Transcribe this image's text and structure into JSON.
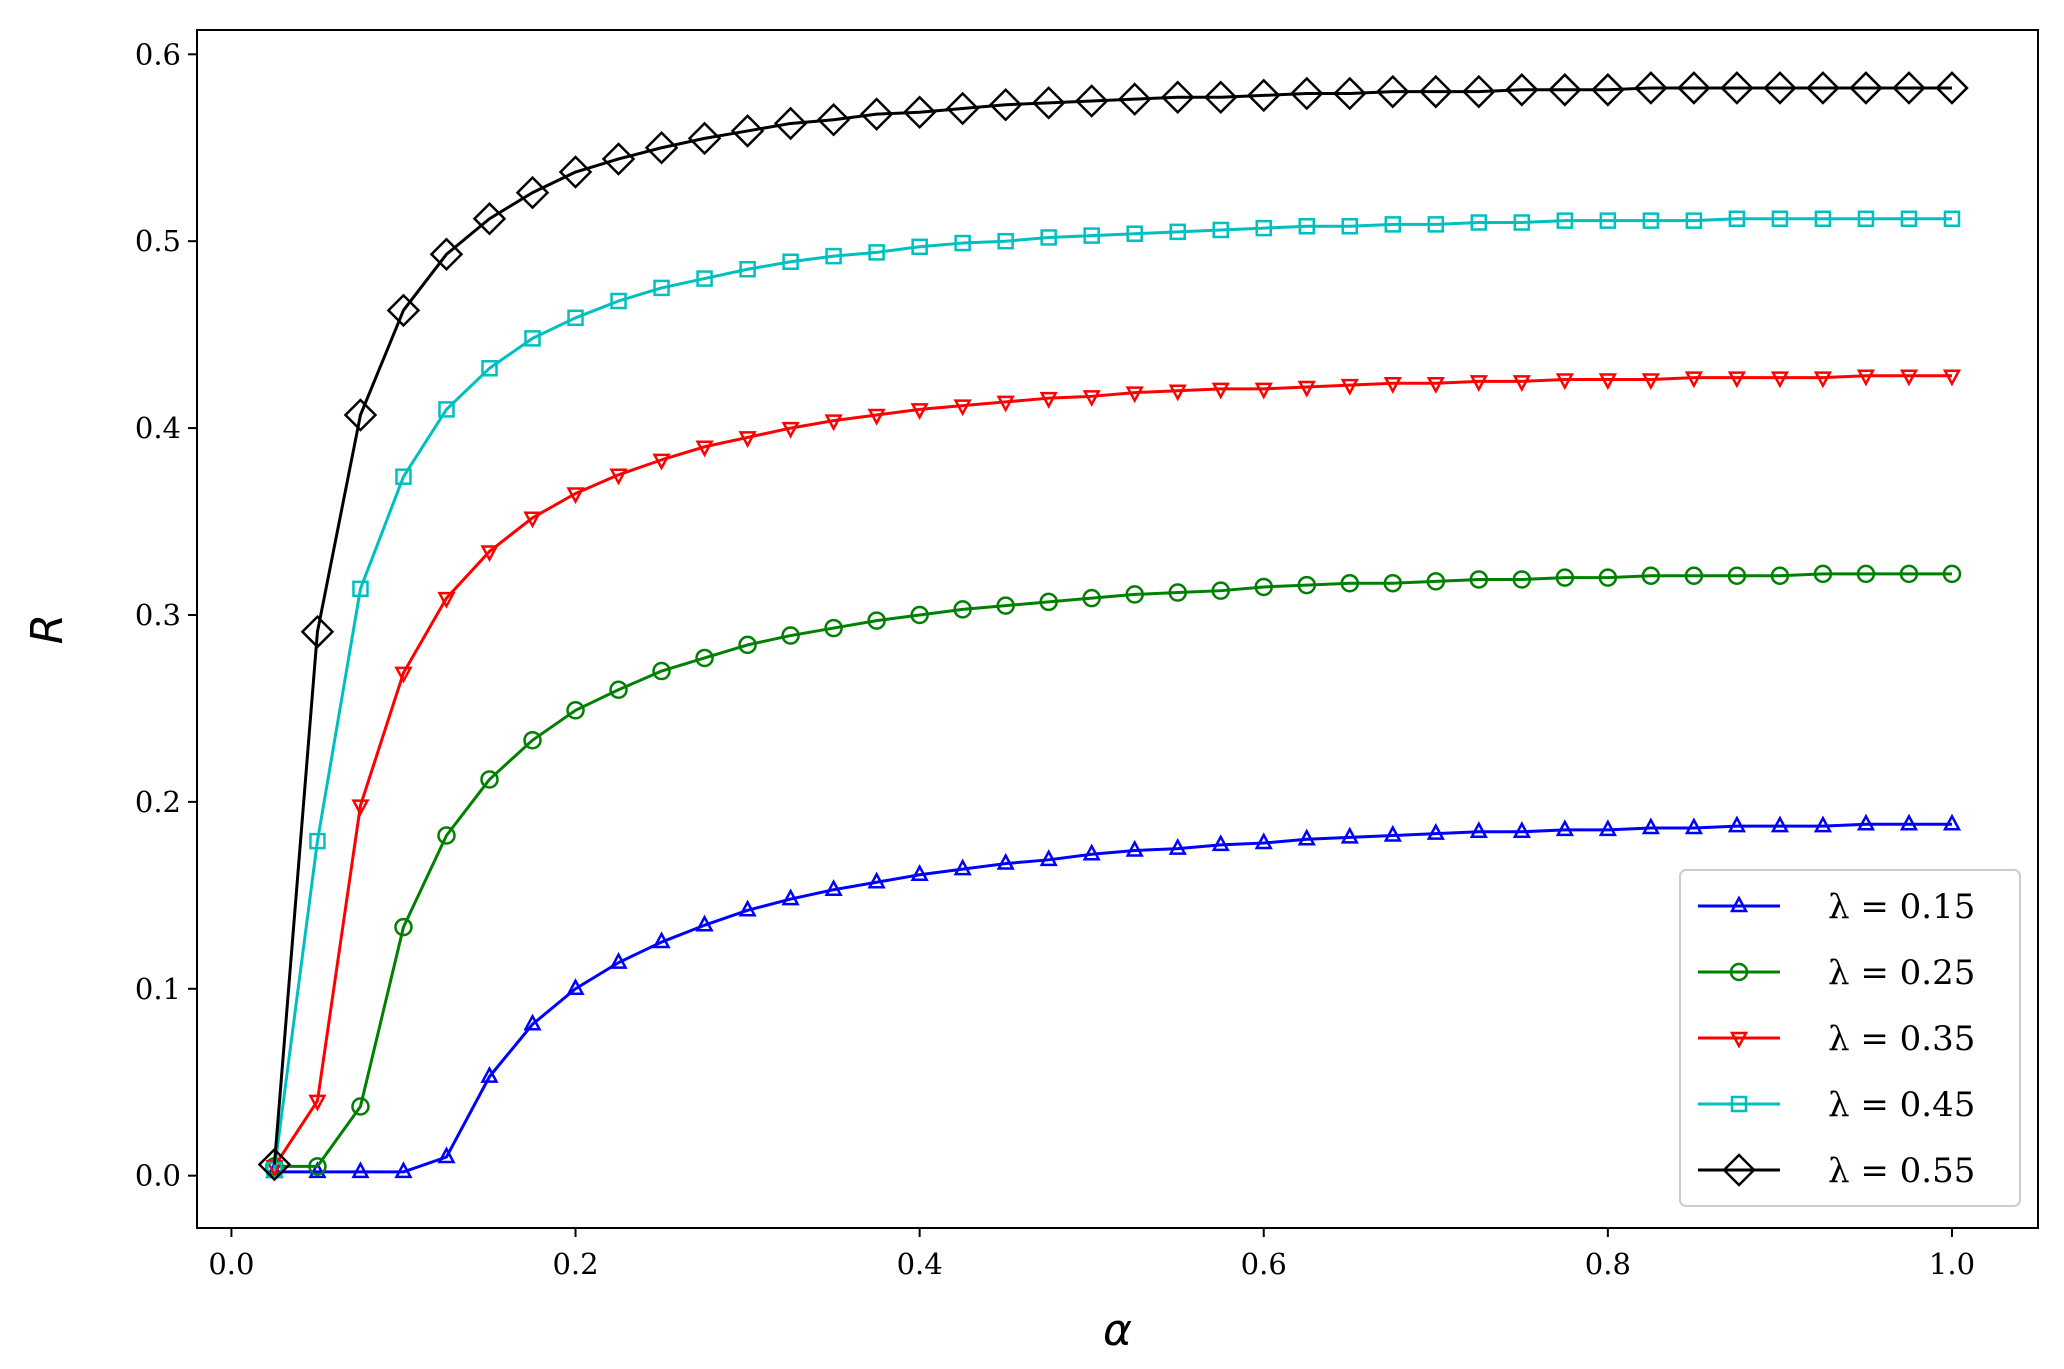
{
  "chart_data": {
    "type": "line",
    "xlabel": "α",
    "ylabel": "R",
    "xlim": [
      -0.02,
      1.05
    ],
    "ylim": [
      -0.028,
      0.613
    ],
    "x_ticks": [
      0.0,
      0.2,
      0.4,
      0.6,
      0.8,
      1.0
    ],
    "x_tick_labels": [
      "0.0",
      "0.2",
      "0.4",
      "0.6",
      "0.8",
      "1.0"
    ],
    "y_ticks": [
      0.0,
      0.1,
      0.2,
      0.3,
      0.4,
      0.5,
      0.6
    ],
    "y_tick_labels": [
      "0.0",
      "0.1",
      "0.2",
      "0.3",
      "0.4",
      "0.5",
      "0.6"
    ],
    "grid": false,
    "legend_position": "lower-right",
    "x": [
      0.025,
      0.05,
      0.075,
      0.1,
      0.125,
      0.15,
      0.175,
      0.2,
      0.225,
      0.25,
      0.275,
      0.3,
      0.325,
      0.35,
      0.375,
      0.4,
      0.425,
      0.45,
      0.475,
      0.5,
      0.525,
      0.55,
      0.575,
      0.6,
      0.625,
      0.65,
      0.675,
      0.7,
      0.725,
      0.75,
      0.775,
      0.8,
      0.825,
      0.85,
      0.875,
      0.9,
      0.925,
      0.95,
      0.975,
      1.0
    ],
    "series": [
      {
        "name": "λ = 0.15",
        "color": "#0000ff",
        "marker": "triangle-up",
        "values": [
          0.002,
          0.002,
          0.002,
          0.002,
          0.01,
          0.053,
          0.081,
          0.1,
          0.114,
          0.125,
          0.134,
          0.142,
          0.148,
          0.153,
          0.157,
          0.161,
          0.164,
          0.167,
          0.169,
          0.172,
          0.174,
          0.175,
          0.177,
          0.178,
          0.18,
          0.181,
          0.182,
          0.183,
          0.184,
          0.184,
          0.185,
          0.185,
          0.186,
          0.186,
          0.187,
          0.187,
          0.187,
          0.188,
          0.188,
          0.188
        ]
      },
      {
        "name": "λ = 0.25",
        "color": "#008000",
        "marker": "circle",
        "values": [
          0.005,
          0.005,
          0.037,
          0.133,
          0.182,
          0.212,
          0.233,
          0.249,
          0.26,
          0.27,
          0.277,
          0.284,
          0.289,
          0.293,
          0.297,
          0.3,
          0.303,
          0.305,
          0.307,
          0.309,
          0.311,
          0.312,
          0.313,
          0.315,
          0.316,
          0.317,
          0.317,
          0.318,
          0.319,
          0.319,
          0.32,
          0.32,
          0.321,
          0.321,
          0.321,
          0.321,
          0.322,
          0.322,
          0.322,
          0.322
        ]
      },
      {
        "name": "λ = 0.35",
        "color": "#ff0000",
        "marker": "triangle-down",
        "values": [
          0.005,
          0.04,
          0.198,
          0.269,
          0.309,
          0.334,
          0.352,
          0.365,
          0.375,
          0.383,
          0.39,
          0.395,
          0.4,
          0.404,
          0.407,
          0.41,
          0.412,
          0.414,
          0.416,
          0.417,
          0.419,
          0.42,
          0.421,
          0.421,
          0.422,
          0.423,
          0.424,
          0.424,
          0.425,
          0.425,
          0.426,
          0.426,
          0.426,
          0.427,
          0.427,
          0.427,
          0.427,
          0.428,
          0.428,
          0.428
        ]
      },
      {
        "name": "λ = 0.45",
        "color": "#00bfbf",
        "marker": "square",
        "values": [
          0.003,
          0.179,
          0.314,
          0.374,
          0.41,
          0.432,
          0.448,
          0.459,
          0.468,
          0.475,
          0.48,
          0.485,
          0.489,
          0.492,
          0.494,
          0.497,
          0.499,
          0.5,
          0.502,
          0.503,
          0.504,
          0.505,
          0.506,
          0.507,
          0.508,
          0.508,
          0.509,
          0.509,
          0.51,
          0.51,
          0.511,
          0.511,
          0.511,
          0.511,
          0.512,
          0.512,
          0.512,
          0.512,
          0.512,
          0.512
        ]
      },
      {
        "name": "λ = 0.55",
        "color": "#000000",
        "marker": "diamond",
        "values": [
          0.006,
          0.291,
          0.407,
          0.463,
          0.493,
          0.512,
          0.526,
          0.537,
          0.544,
          0.55,
          0.555,
          0.559,
          0.563,
          0.565,
          0.568,
          0.569,
          0.571,
          0.573,
          0.574,
          0.575,
          0.576,
          0.577,
          0.577,
          0.578,
          0.579,
          0.579,
          0.58,
          0.58,
          0.58,
          0.581,
          0.581,
          0.581,
          0.582,
          0.582,
          0.582,
          0.582,
          0.582,
          0.582,
          0.582,
          0.582
        ]
      }
    ]
  }
}
